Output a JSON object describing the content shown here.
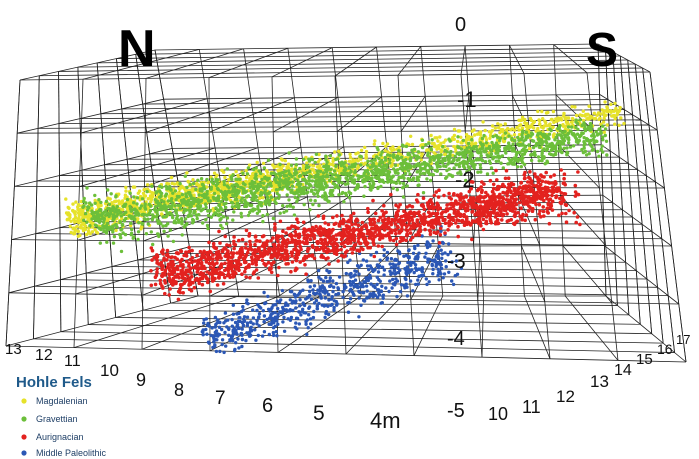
{
  "chart_data": {
    "type": "scatter",
    "title": "",
    "compass": {
      "north": "N",
      "south": "S"
    },
    "x_ticks": [
      "13",
      "12",
      "11",
      "10",
      "9",
      "8",
      "7",
      "6",
      "5",
      "4m"
    ],
    "y_ticks": [
      "10",
      "11",
      "12",
      "13",
      "14",
      "15",
      "16",
      "17"
    ],
    "z_ticks": [
      "0",
      "-1",
      "-2",
      "-3",
      "-4",
      "-5"
    ],
    "grid": true,
    "legend": {
      "title": "Hohle Fels",
      "placement": "bottom-left",
      "items": [
        {
          "label": "Magdalenian",
          "color": "#e6e22a"
        },
        {
          "label": "Gravettian",
          "color": "#6cbf3a"
        },
        {
          "label": "Aurignacian",
          "color": "#e3221f"
        },
        {
          "label": "Middle Paleolithic",
          "color": "#2b57b5"
        }
      ]
    },
    "series": [
      {
        "name": "Magdalenian",
        "color": "#e6e22a",
        "depth_range_m": [
          -1.2,
          -2.3
        ]
      },
      {
        "name": "Gravettian",
        "color": "#6cbf3a",
        "depth_range_m": [
          -1.5,
          -2.5
        ]
      },
      {
        "name": "Aurignacian",
        "color": "#e3221f",
        "depth_range_m": [
          -2.0,
          -3.2
        ]
      },
      {
        "name": "Middle Paleolithic",
        "color": "#2b57b5",
        "depth_range_m": [
          -2.7,
          -3.9
        ]
      }
    ]
  }
}
